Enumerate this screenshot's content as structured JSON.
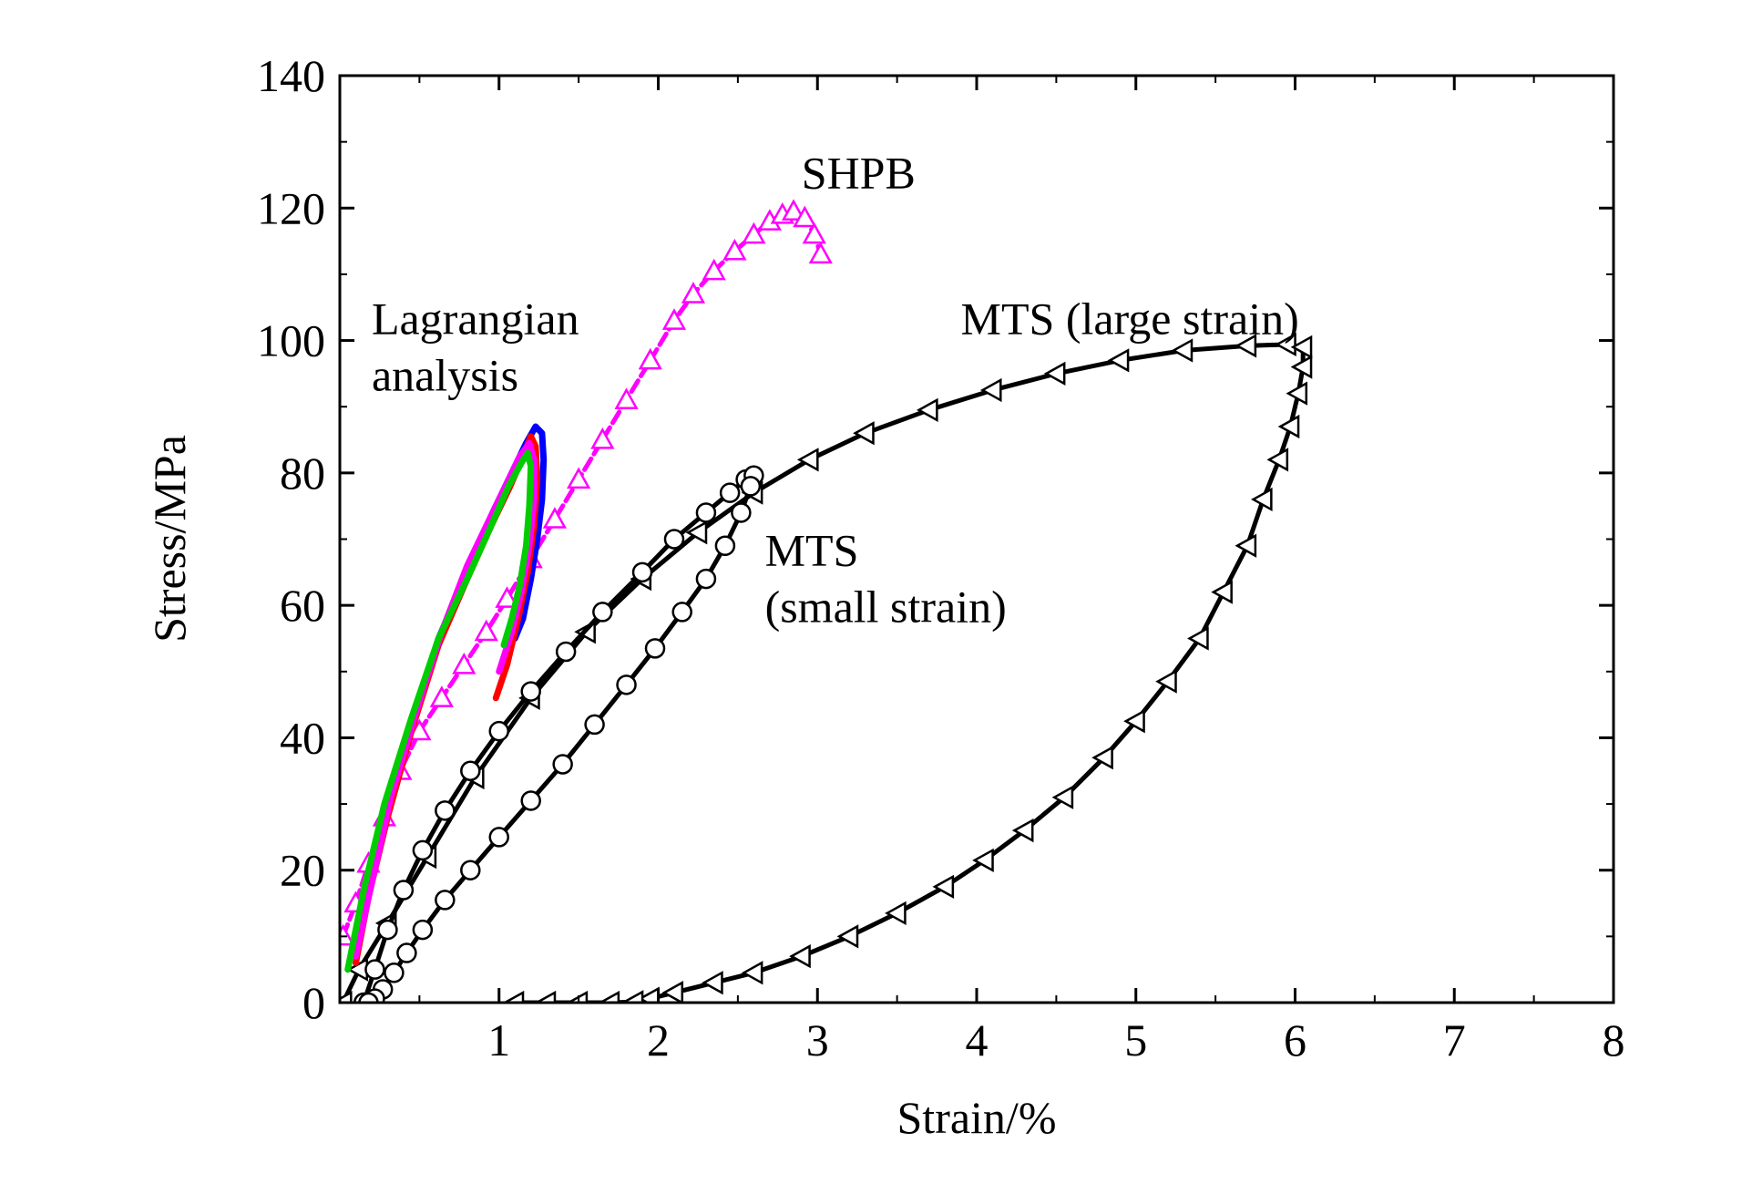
{
  "chart_data": {
    "type": "line",
    "xlabel": "Strain/%",
    "ylabel": "Stress/MPa",
    "xlim": [
      0,
      8
    ],
    "ylim": [
      0,
      140
    ],
    "xticks": [
      1,
      2,
      3,
      4,
      5,
      6,
      7,
      8
    ],
    "yticks": [
      0,
      20,
      40,
      60,
      80,
      100,
      120,
      140
    ],
    "grid": false,
    "annotations": [
      {
        "id": "shpb",
        "lines": [
          "SHPB"
        ],
        "x": 2.9,
        "y": 123
      },
      {
        "id": "mts-large",
        "lines": [
          "MTS (large strain)"
        ],
        "x": 3.9,
        "y": 101
      },
      {
        "id": "lagrangian",
        "lines": [
          "Lagrangian",
          "analysis"
        ],
        "x": 0.2,
        "y": 101
      },
      {
        "id": "mts-small",
        "lines": [
          "MTS",
          "(small strain)"
        ],
        "x": 2.67,
        "y": 66
      }
    ],
    "series": [
      {
        "id": "mts_large",
        "color": "#000000",
        "marker": "triangle-left",
        "x": [
          0.02,
          0.12,
          0.3,
          0.55,
          0.85,
          1.2,
          1.55,
          1.9,
          2.25,
          2.6,
          2.95,
          3.3,
          3.7,
          4.1,
          4.5,
          4.9,
          5.3,
          5.7,
          5.95,
          6.05,
          6.05,
          6.02,
          5.97,
          5.9,
          5.8,
          5.7,
          5.55,
          5.4,
          5.2,
          5.0,
          4.8,
          4.55,
          4.3,
          4.05,
          3.8,
          3.5,
          3.2,
          2.9,
          2.6,
          2.35,
          2.1,
          1.95,
          1.85,
          1.7,
          1.5,
          1.3,
          1.1
        ],
        "y": [
          0,
          5,
          12,
          22,
          34,
          46,
          56,
          64,
          71,
          77,
          82,
          86,
          89.5,
          92.5,
          95,
          97,
          98.5,
          99.2,
          99.4,
          99,
          96,
          92,
          87,
          82,
          76,
          69,
          62,
          55,
          48.5,
          42.5,
          37,
          31,
          26,
          21.5,
          17.5,
          13.5,
          10,
          7,
          4.5,
          3,
          1.5,
          0.6,
          0.1,
          0,
          0,
          0,
          0
        ]
      },
      {
        "id": "mts_small",
        "color": "#000000",
        "marker": "circle",
        "x": [
          0.15,
          0.22,
          0.3,
          0.4,
          0.52,
          0.66,
          0.82,
          1.0,
          1.2,
          1.42,
          1.65,
          1.9,
          2.1,
          2.3,
          2.45,
          2.55,
          2.6,
          2.58,
          2.52,
          2.42,
          2.3,
          2.15,
          1.98,
          1.8,
          1.6,
          1.4,
          1.2,
          1.0,
          0.82,
          0.66,
          0.52,
          0.42,
          0.34,
          0.27,
          0.22,
          0.18
        ],
        "y": [
          0,
          5,
          11,
          17,
          23,
          29,
          35,
          41,
          47,
          53,
          59,
          65,
          70,
          74,
          77,
          79,
          79.6,
          78,
          74,
          69,
          64,
          59,
          53.5,
          48,
          42,
          36,
          30.5,
          25,
          20,
          15.5,
          11,
          7.5,
          4.5,
          2,
          0.6,
          0
        ]
      },
      {
        "id": "shpb",
        "color": "#ff00ff",
        "marker": "triangle-up",
        "x": [
          0.02,
          0.1,
          0.18,
          0.28,
          0.38,
          0.5,
          0.64,
          0.78,
          0.92,
          1.05,
          1.2,
          1.35,
          1.5,
          1.65,
          1.8,
          1.95,
          2.1,
          2.22,
          2.35,
          2.48,
          2.6,
          2.7,
          2.78,
          2.85,
          2.92,
          2.98,
          3.02
        ],
        "y": [
          10,
          15,
          21,
          28,
          35,
          41,
          46,
          51,
          56,
          61,
          67,
          73,
          79,
          85,
          91,
          97,
          103,
          107,
          110.5,
          113.5,
          116,
          118,
          119,
          119.5,
          118.5,
          116,
          113
        ]
      },
      {
        "id": "lag_blue",
        "color": "#0000ff",
        "marker": "none",
        "x": [
          0.1,
          0.18,
          0.3,
          0.45,
          0.62,
          0.8,
          0.96,
          1.08,
          1.17,
          1.23,
          1.27,
          1.28,
          1.27,
          1.24,
          1.2,
          1.15,
          1.1
        ],
        "y": [
          8,
          18,
          30,
          42,
          55,
          65,
          74,
          80,
          84.5,
          87,
          86,
          82,
          76,
          70,
          64,
          58,
          55
        ]
      },
      {
        "id": "lag_red",
        "color": "#ff0000",
        "marker": "none",
        "x": [
          0.1,
          0.18,
          0.3,
          0.45,
          0.62,
          0.8,
          0.95,
          1.07,
          1.15,
          1.2,
          1.23,
          1.24,
          1.22,
          1.18,
          1.12,
          1.05,
          0.98
        ],
        "y": [
          6,
          16,
          28,
          41,
          54,
          64,
          72,
          78,
          82.5,
          85.5,
          84,
          79,
          72,
          65,
          58,
          51,
          46
        ]
      },
      {
        "id": "lag_magenta",
        "color": "#ff00ff",
        "marker": "none",
        "x": [
          0.1,
          0.2,
          0.32,
          0.48,
          0.64,
          0.8,
          0.94,
          1.05,
          1.13,
          1.19,
          1.22,
          1.22,
          1.19,
          1.14,
          1.08,
          1.0
        ],
        "y": [
          7,
          18,
          31,
          44,
          56,
          66,
          73,
          78.5,
          82.5,
          84.5,
          82,
          76,
          69,
          62,
          56,
          50
        ]
      },
      {
        "id": "lag_green",
        "color": "#00cc00",
        "marker": "none",
        "x": [
          0.05,
          0.15,
          0.28,
          0.45,
          0.62,
          0.8,
          0.95,
          1.06,
          1.14,
          1.18,
          1.2,
          1.19,
          1.17,
          1.13,
          1.08,
          1.03
        ],
        "y": [
          5,
          17,
          30,
          43,
          55,
          64,
          72,
          78,
          81.5,
          83,
          81,
          75,
          69,
          63,
          58,
          54
        ]
      }
    ]
  }
}
